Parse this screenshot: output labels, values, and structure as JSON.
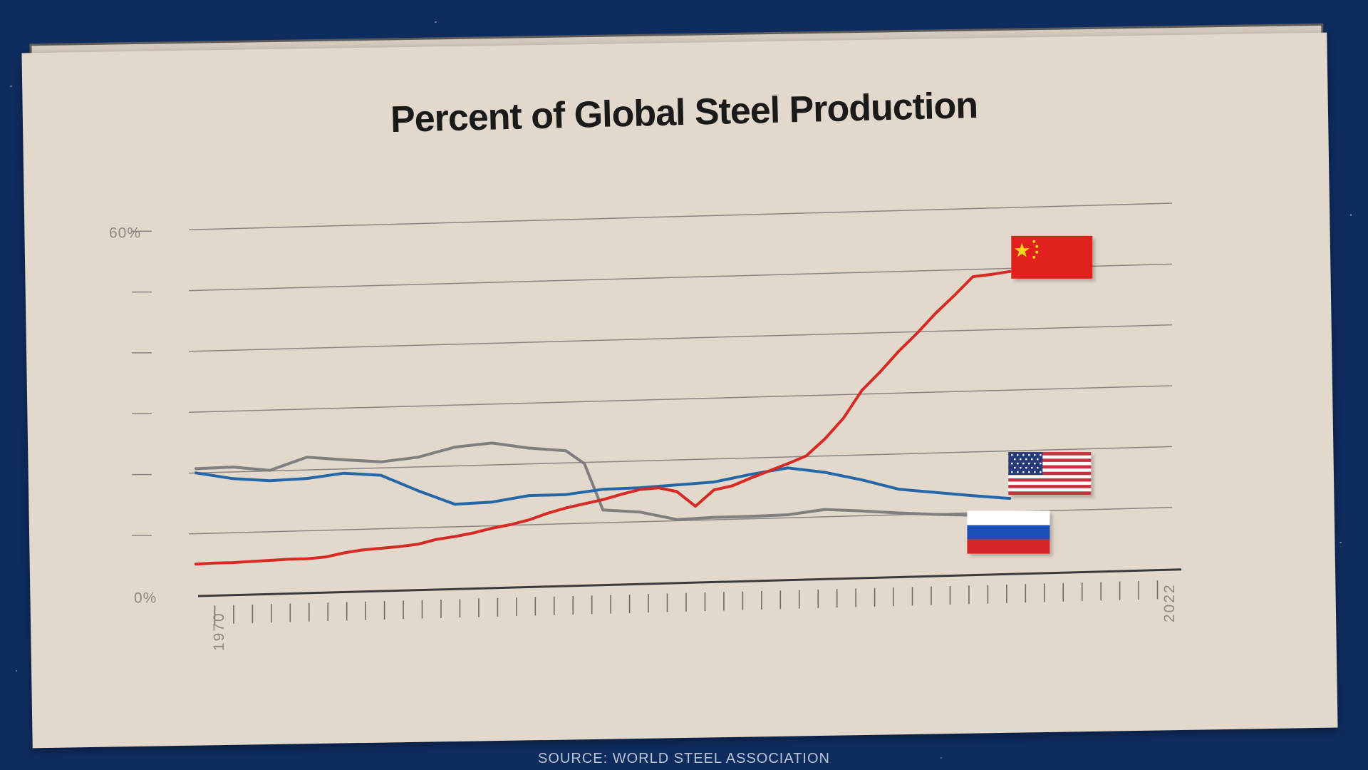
{
  "page": {
    "source": "SOURCE: WORLD STEEL ASSOCIATION"
  },
  "chart_data": {
    "type": "line",
    "title": "Percent of Global Steel Production",
    "ylim": [
      0,
      60
    ],
    "y_tick_labels": [
      {
        "value": 60,
        "label": "60%"
      },
      {
        "value": 0,
        "label": "0%"
      }
    ],
    "x_range": [
      1970,
      2022
    ],
    "x_tick_labels": [
      {
        "value": 1970,
        "label": "1970"
      },
      {
        "value": 2022,
        "label": "2022"
      }
    ],
    "grid": true,
    "colors": {
      "china": "#d62a24",
      "usa": "#2467a8",
      "russia": "#7f7f7f"
    },
    "series": [
      {
        "key": "china",
        "flag": "china-flag",
        "x": [
          1970,
          1971,
          1972,
          1973,
          1974,
          1975,
          1976,
          1977,
          1978,
          1979,
          1980,
          1981,
          1982,
          1983,
          1984,
          1985,
          1986,
          1987,
          1988,
          1989,
          1990,
          1991,
          1992,
          1993,
          1994,
          1995,
          1996,
          1997,
          1998,
          1999,
          2000,
          2001,
          2002,
          2003,
          2004,
          2005,
          2006,
          2007,
          2008,
          2009,
          2010,
          2011,
          2012,
          2013,
          2014
        ],
        "values": [
          5.0,
          5.1,
          5.1,
          5.2,
          5.3,
          5.4,
          5.4,
          5.6,
          6.2,
          6.6,
          6.8,
          7.0,
          7.3,
          8.0,
          8.4,
          8.9,
          9.6,
          10.1,
          10.8,
          11.8,
          12.6,
          13.2,
          13.8,
          14.6,
          15.3,
          15.5,
          14.8,
          12.3,
          14.9,
          15.5,
          16.7,
          17.8,
          18.9,
          20.1,
          22.8,
          26.1,
          30.6,
          33.6,
          36.9,
          39.8,
          43.0,
          45.8,
          48.8,
          49.1,
          49.5
        ]
      },
      {
        "key": "usa",
        "flag": "usa-flag",
        "x": [
          1970,
          1972,
          1974,
          1976,
          1978,
          1980,
          1982,
          1984,
          1986,
          1988,
          1990,
          1992,
          1994,
          1996,
          1998,
          2000,
          2002,
          2004,
          2006,
          2008,
          2010,
          2012,
          2014
        ],
        "values": [
          20.0,
          18.9,
          18.4,
          18.6,
          19.3,
          18.8,
          16.1,
          13.7,
          13.9,
          14.8,
          14.8,
          15.5,
          15.6,
          15.9,
          16.2,
          17.3,
          18.2,
          17.3,
          15.9,
          14.2,
          13.5,
          12.8,
          12.2
        ]
      },
      {
        "key": "russia",
        "flag": "russia-flag",
        "x": [
          1970,
          1972,
          1974,
          1976,
          1978,
          1980,
          1982,
          1984,
          1986,
          1988,
          1990,
          1991,
          1992,
          1994,
          1996,
          1998,
          2000,
          2002,
          2004,
          2006,
          2008,
          2010,
          2012
        ],
        "values": [
          20.7,
          20.8,
          20.1,
          22.1,
          21.5,
          21.0,
          21.6,
          23.1,
          23.6,
          22.6,
          22.0,
          19.8,
          12.1,
          11.6,
          10.2,
          10.4,
          10.4,
          10.5,
          11.2,
          10.8,
          10.3,
          9.9,
          9.6
        ]
      }
    ]
  }
}
